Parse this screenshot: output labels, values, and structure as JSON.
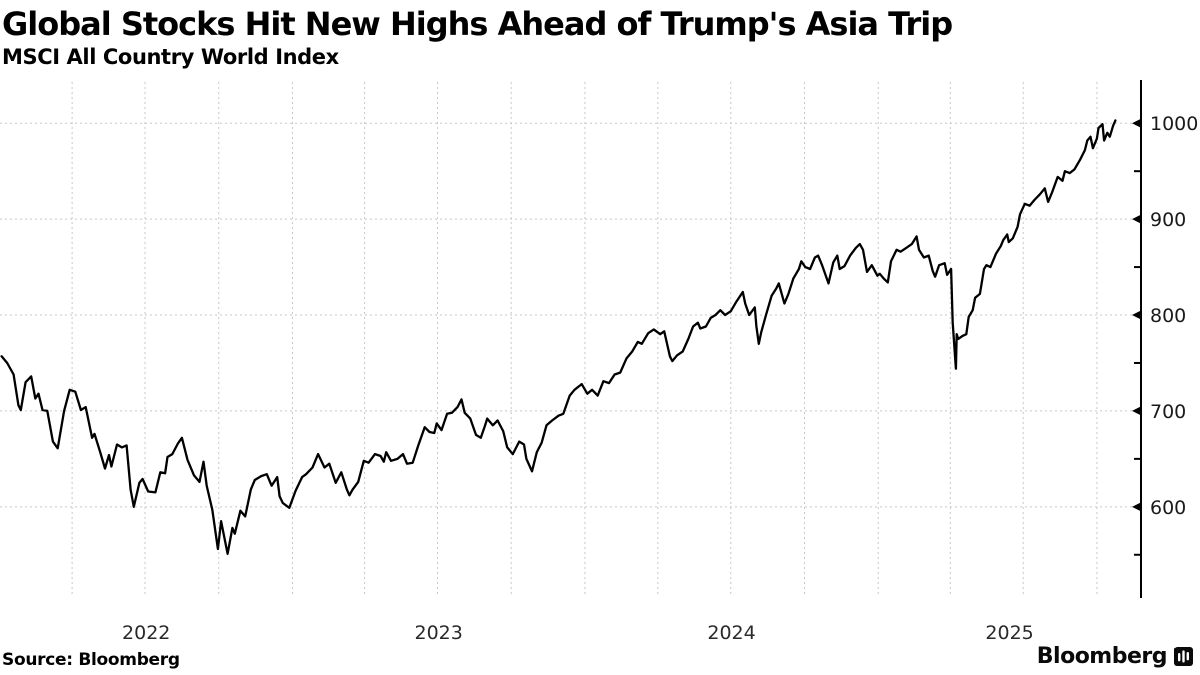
{
  "header": {
    "title": "Global Stocks Hit New Highs Ahead of Trump's Asia Trip",
    "subtitle": "MSCI All Country World Index"
  },
  "footer": {
    "source": "Source: Bloomberg",
    "brand": "Bloomberg",
    "brand_icon": "bloomberg-app-icon"
  },
  "chart_data": {
    "type": "line",
    "title": "Global Stocks Hit New Highs Ahead of Trump's Asia Trip",
    "subtitle": "MSCI All Country World Index",
    "series_name": "MSCI All Country World Index",
    "line_color": "#000000",
    "grid_color": "#c7c7c7",
    "grid_style": "dashed",
    "legend": "none",
    "x_range": [
      "2022-01-01",
      "2025-11-25"
    ],
    "x_gridline_interval": "quarterly",
    "x_axis": {
      "tick_labels": [
        "2022",
        "2023",
        "2024",
        "2025"
      ],
      "position": "bottom"
    },
    "y_axis": {
      "side": "right",
      "range": [
        507,
        1043
      ],
      "ticks": [
        600,
        700,
        800,
        900,
        1000
      ],
      "minor_ticks": [
        550,
        650,
        750,
        850,
        950
      ]
    },
    "points": [
      [
        "2022-01-03",
        757
      ],
      [
        "2022-01-10",
        750
      ],
      [
        "2022-01-18",
        738
      ],
      [
        "2022-01-24",
        706
      ],
      [
        "2022-01-27",
        701
      ],
      [
        "2022-02-02",
        730
      ],
      [
        "2022-02-09",
        736
      ],
      [
        "2022-02-14",
        713
      ],
      [
        "2022-02-18",
        718
      ],
      [
        "2022-02-23",
        701
      ],
      [
        "2022-03-01",
        700
      ],
      [
        "2022-03-08",
        668
      ],
      [
        "2022-03-14",
        661
      ],
      [
        "2022-03-22",
        700
      ],
      [
        "2022-03-29",
        722
      ],
      [
        "2022-04-05",
        720
      ],
      [
        "2022-04-12",
        701
      ],
      [
        "2022-04-18",
        704
      ],
      [
        "2022-04-26",
        672
      ],
      [
        "2022-04-29",
        676
      ],
      [
        "2022-05-06",
        657
      ],
      [
        "2022-05-12",
        640
      ],
      [
        "2022-05-17",
        654
      ],
      [
        "2022-05-20",
        642
      ],
      [
        "2022-05-27",
        665
      ],
      [
        "2022-06-02",
        662
      ],
      [
        "2022-06-08",
        664
      ],
      [
        "2022-06-13",
        618
      ],
      [
        "2022-06-17",
        600
      ],
      [
        "2022-06-24",
        625
      ],
      [
        "2022-06-28",
        629
      ],
      [
        "2022-07-05",
        616
      ],
      [
        "2022-07-14",
        615
      ],
      [
        "2022-07-20",
        636
      ],
      [
        "2022-07-26",
        635
      ],
      [
        "2022-07-29",
        652
      ],
      [
        "2022-08-04",
        655
      ],
      [
        "2022-08-11",
        666
      ],
      [
        "2022-08-16",
        672
      ],
      [
        "2022-08-23",
        649
      ],
      [
        "2022-08-31",
        633
      ],
      [
        "2022-09-07",
        626
      ],
      [
        "2022-09-12",
        647
      ],
      [
        "2022-09-16",
        622
      ],
      [
        "2022-09-23",
        597
      ],
      [
        "2022-09-30",
        556
      ],
      [
        "2022-10-04",
        585
      ],
      [
        "2022-10-12",
        551
      ],
      [
        "2022-10-18",
        578
      ],
      [
        "2022-10-21",
        572
      ],
      [
        "2022-10-28",
        596
      ],
      [
        "2022-11-03",
        590
      ],
      [
        "2022-11-10",
        618
      ],
      [
        "2022-11-15",
        628
      ],
      [
        "2022-11-23",
        632
      ],
      [
        "2022-11-30",
        634
      ],
      [
        "2022-12-06",
        622
      ],
      [
        "2022-12-13",
        631
      ],
      [
        "2022-12-16",
        611
      ],
      [
        "2022-12-20",
        604
      ],
      [
        "2022-12-28",
        599
      ],
      [
        "2023-01-05",
        617
      ],
      [
        "2023-01-13",
        631
      ],
      [
        "2023-01-18",
        634
      ],
      [
        "2023-01-26",
        641
      ],
      [
        "2023-02-02",
        655
      ],
      [
        "2023-02-10",
        641
      ],
      [
        "2023-02-16",
        645
      ],
      [
        "2023-02-24",
        625
      ],
      [
        "2023-03-03",
        636
      ],
      [
        "2023-03-10",
        618
      ],
      [
        "2023-03-13",
        612
      ],
      [
        "2023-03-17",
        618
      ],
      [
        "2023-03-24",
        626
      ],
      [
        "2023-03-31",
        648
      ],
      [
        "2023-04-06",
        646
      ],
      [
        "2023-04-14",
        655
      ],
      [
        "2023-04-21",
        653
      ],
      [
        "2023-04-25",
        647
      ],
      [
        "2023-04-28",
        657
      ],
      [
        "2023-05-04",
        648
      ],
      [
        "2023-05-12",
        650
      ],
      [
        "2023-05-19",
        655
      ],
      [
        "2023-05-24",
        645
      ],
      [
        "2023-05-31",
        646
      ],
      [
        "2023-06-07",
        664
      ],
      [
        "2023-06-15",
        683
      ],
      [
        "2023-06-21",
        678
      ],
      [
        "2023-06-27",
        677
      ],
      [
        "2023-06-30",
        687
      ],
      [
        "2023-07-06",
        680
      ],
      [
        "2023-07-13",
        697
      ],
      [
        "2023-07-19",
        698
      ],
      [
        "2023-07-26",
        704
      ],
      [
        "2023-07-31",
        712
      ],
      [
        "2023-08-04",
        698
      ],
      [
        "2023-08-11",
        692
      ],
      [
        "2023-08-18",
        675
      ],
      [
        "2023-08-24",
        672
      ],
      [
        "2023-08-29",
        684
      ],
      [
        "2023-09-01",
        692
      ],
      [
        "2023-09-08",
        685
      ],
      [
        "2023-09-14",
        690
      ],
      [
        "2023-09-21",
        679
      ],
      [
        "2023-09-26",
        662
      ],
      [
        "2023-10-03",
        655
      ],
      [
        "2023-10-11",
        668
      ],
      [
        "2023-10-17",
        665
      ],
      [
        "2023-10-20",
        650
      ],
      [
        "2023-10-27",
        637
      ],
      [
        "2023-11-02",
        657
      ],
      [
        "2023-11-08",
        667
      ],
      [
        "2023-11-14",
        685
      ],
      [
        "2023-11-21",
        690
      ],
      [
        "2023-11-29",
        695
      ],
      [
        "2023-12-05",
        697
      ],
      [
        "2023-12-13",
        716
      ],
      [
        "2023-12-19",
        722
      ],
      [
        "2023-12-28",
        728
      ],
      [
        "2024-01-04",
        718
      ],
      [
        "2024-01-10",
        722
      ],
      [
        "2024-01-17",
        716
      ],
      [
        "2024-01-24",
        731
      ],
      [
        "2024-01-31",
        729
      ],
      [
        "2024-02-07",
        738
      ],
      [
        "2024-02-14",
        740
      ],
      [
        "2024-02-22",
        755
      ],
      [
        "2024-02-29",
        762
      ],
      [
        "2024-03-07",
        772
      ],
      [
        "2024-03-12",
        770
      ],
      [
        "2024-03-20",
        781
      ],
      [
        "2024-03-27",
        785
      ],
      [
        "2024-04-04",
        780
      ],
      [
        "2024-04-09",
        783
      ],
      [
        "2024-04-16",
        757
      ],
      [
        "2024-04-19",
        752
      ],
      [
        "2024-04-25",
        758
      ],
      [
        "2024-05-02",
        762
      ],
      [
        "2024-05-09",
        775
      ],
      [
        "2024-05-15",
        788
      ],
      [
        "2024-05-21",
        792
      ],
      [
        "2024-05-24",
        786
      ],
      [
        "2024-05-31",
        788
      ],
      [
        "2024-06-06",
        797
      ],
      [
        "2024-06-12",
        800
      ],
      [
        "2024-06-18",
        805
      ],
      [
        "2024-06-24",
        800
      ],
      [
        "2024-07-01",
        804
      ],
      [
        "2024-07-08",
        814
      ],
      [
        "2024-07-16",
        824
      ],
      [
        "2024-07-19",
        812
      ],
      [
        "2024-07-24",
        800
      ],
      [
        "2024-07-31",
        808
      ],
      [
        "2024-08-02",
        788
      ],
      [
        "2024-08-05",
        770
      ],
      [
        "2024-08-08",
        782
      ],
      [
        "2024-08-14",
        800
      ],
      [
        "2024-08-21",
        820
      ],
      [
        "2024-08-27",
        828
      ],
      [
        "2024-08-30",
        833
      ],
      [
        "2024-09-04",
        818
      ],
      [
        "2024-09-06",
        812
      ],
      [
        "2024-09-11",
        822
      ],
      [
        "2024-09-17",
        838
      ],
      [
        "2024-09-24",
        848
      ],
      [
        "2024-09-27",
        856
      ],
      [
        "2024-10-02",
        850
      ],
      [
        "2024-10-08",
        848
      ],
      [
        "2024-10-14",
        860
      ],
      [
        "2024-10-18",
        862
      ],
      [
        "2024-10-23",
        852
      ],
      [
        "2024-10-31",
        833
      ],
      [
        "2024-11-06",
        855
      ],
      [
        "2024-11-11",
        862
      ],
      [
        "2024-11-14",
        848
      ],
      [
        "2024-11-20",
        851
      ],
      [
        "2024-11-27",
        862
      ],
      [
        "2024-12-04",
        870
      ],
      [
        "2024-12-09",
        874
      ],
      [
        "2024-12-13",
        868
      ],
      [
        "2024-12-18",
        845
      ],
      [
        "2024-12-24",
        852
      ],
      [
        "2024-12-31",
        841
      ],
      [
        "2025-01-03",
        843
      ],
      [
        "2025-01-08",
        838
      ],
      [
        "2025-01-13",
        834
      ],
      [
        "2025-01-17",
        856
      ],
      [
        "2025-01-24",
        868
      ],
      [
        "2025-01-29",
        866
      ],
      [
        "2025-02-05",
        870
      ],
      [
        "2025-02-12",
        874
      ],
      [
        "2025-02-18",
        882
      ],
      [
        "2025-02-21",
        868
      ],
      [
        "2025-02-27",
        860
      ],
      [
        "2025-03-05",
        862
      ],
      [
        "2025-03-10",
        846
      ],
      [
        "2025-03-13",
        840
      ],
      [
        "2025-03-18",
        852
      ],
      [
        "2025-03-25",
        854
      ],
      [
        "2025-03-28",
        842
      ],
      [
        "2025-04-02",
        848
      ],
      [
        "2025-04-04",
        792
      ],
      [
        "2025-04-08",
        744
      ],
      [
        "2025-04-09",
        780
      ],
      [
        "2025-04-11",
        775
      ],
      [
        "2025-04-16",
        778
      ],
      [
        "2025-04-21",
        780
      ],
      [
        "2025-04-24",
        798
      ],
      [
        "2025-04-29",
        805
      ],
      [
        "2025-05-02",
        818
      ],
      [
        "2025-05-08",
        822
      ],
      [
        "2025-05-13",
        848
      ],
      [
        "2025-05-16",
        852
      ],
      [
        "2025-05-21",
        850
      ],
      [
        "2025-05-28",
        864
      ],
      [
        "2025-06-03",
        872
      ],
      [
        "2025-06-06",
        878
      ],
      [
        "2025-06-11",
        884
      ],
      [
        "2025-06-13",
        876
      ],
      [
        "2025-06-18",
        880
      ],
      [
        "2025-06-24",
        892
      ],
      [
        "2025-06-27",
        905
      ],
      [
        "2025-07-03",
        916
      ],
      [
        "2025-07-09",
        914
      ],
      [
        "2025-07-15",
        920
      ],
      [
        "2025-07-22",
        926
      ],
      [
        "2025-07-28",
        932
      ],
      [
        "2025-08-01",
        918
      ],
      [
        "2025-08-06",
        928
      ],
      [
        "2025-08-13",
        944
      ],
      [
        "2025-08-19",
        940
      ],
      [
        "2025-08-22",
        950
      ],
      [
        "2025-08-28",
        948
      ],
      [
        "2025-09-03",
        952
      ],
      [
        "2025-09-10",
        962
      ],
      [
        "2025-09-16",
        972
      ],
      [
        "2025-09-19",
        982
      ],
      [
        "2025-09-23",
        986
      ],
      [
        "2025-09-26",
        974
      ],
      [
        "2025-10-01",
        984
      ],
      [
        "2025-10-03",
        995
      ],
      [
        "2025-10-08",
        999
      ],
      [
        "2025-10-10",
        982
      ],
      [
        "2025-10-14",
        990
      ],
      [
        "2025-10-17",
        986
      ],
      [
        "2025-10-21",
        997
      ],
      [
        "2025-10-24",
        1003
      ]
    ]
  }
}
